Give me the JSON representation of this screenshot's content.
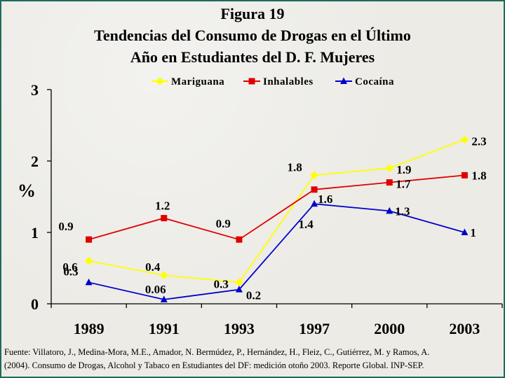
{
  "header": {
    "figure": "Figura 19",
    "title_line1": "Tendencias del Consumo de Drogas en el Último",
    "title_line2": "Año en Estudiantes del D. F.  Mujeres"
  },
  "source": {
    "line1": "Fuente: Villatoro, J., Medina-Mora, M.E., Amador, N. Bermúdez, P., Hernández, H., Fleiz, C., Gutiérrez, M. y Ramos, A.",
    "line2": "(2004). Consumo de Drogas, Alcohol y Tabaco en Estudiantes del DF: medición otoño 2003. Reporte Global. INP-SEP."
  },
  "chart_data": {
    "type": "line",
    "title": "Figura 19 Tendencias del Consumo de Drogas en el Último Año en Estudiantes del D. F. Mujeres",
    "xlabel": "",
    "ylabel": "%",
    "categories": [
      "1989",
      "1991",
      "1993",
      "1997",
      "2000",
      "2003"
    ],
    "ylim": [
      0,
      3
    ],
    "yticks": [
      0,
      1,
      2,
      3
    ],
    "grid": false,
    "legend_position": "top",
    "series": [
      {
        "name": "Mariguana",
        "color": "#ffff00",
        "marker": "diamond",
        "values": [
          0.6,
          0.4,
          0.3,
          1.8,
          1.9,
          2.3
        ],
        "labels": [
          "0.6",
          "0.4",
          "0.3",
          "1.8",
          "1.9",
          "2.3"
        ]
      },
      {
        "name": "Inhalables",
        "color": "#e00000",
        "marker": "square",
        "values": [
          0.9,
          1.2,
          0.9,
          1.6,
          1.7,
          1.8
        ],
        "labels": [
          "0.9",
          "1.2",
          "0.9",
          "1.6",
          "1.7",
          "1.8"
        ]
      },
      {
        "name": "Cocaína",
        "color": "#0000cc",
        "marker": "triangle",
        "values": [
          0.3,
          0.06,
          0.2,
          1.4,
          1.3,
          1.0
        ],
        "labels": [
          "0.3",
          "0.06",
          "0.2",
          "1.4",
          "1.3",
          "1"
        ]
      }
    ]
  }
}
